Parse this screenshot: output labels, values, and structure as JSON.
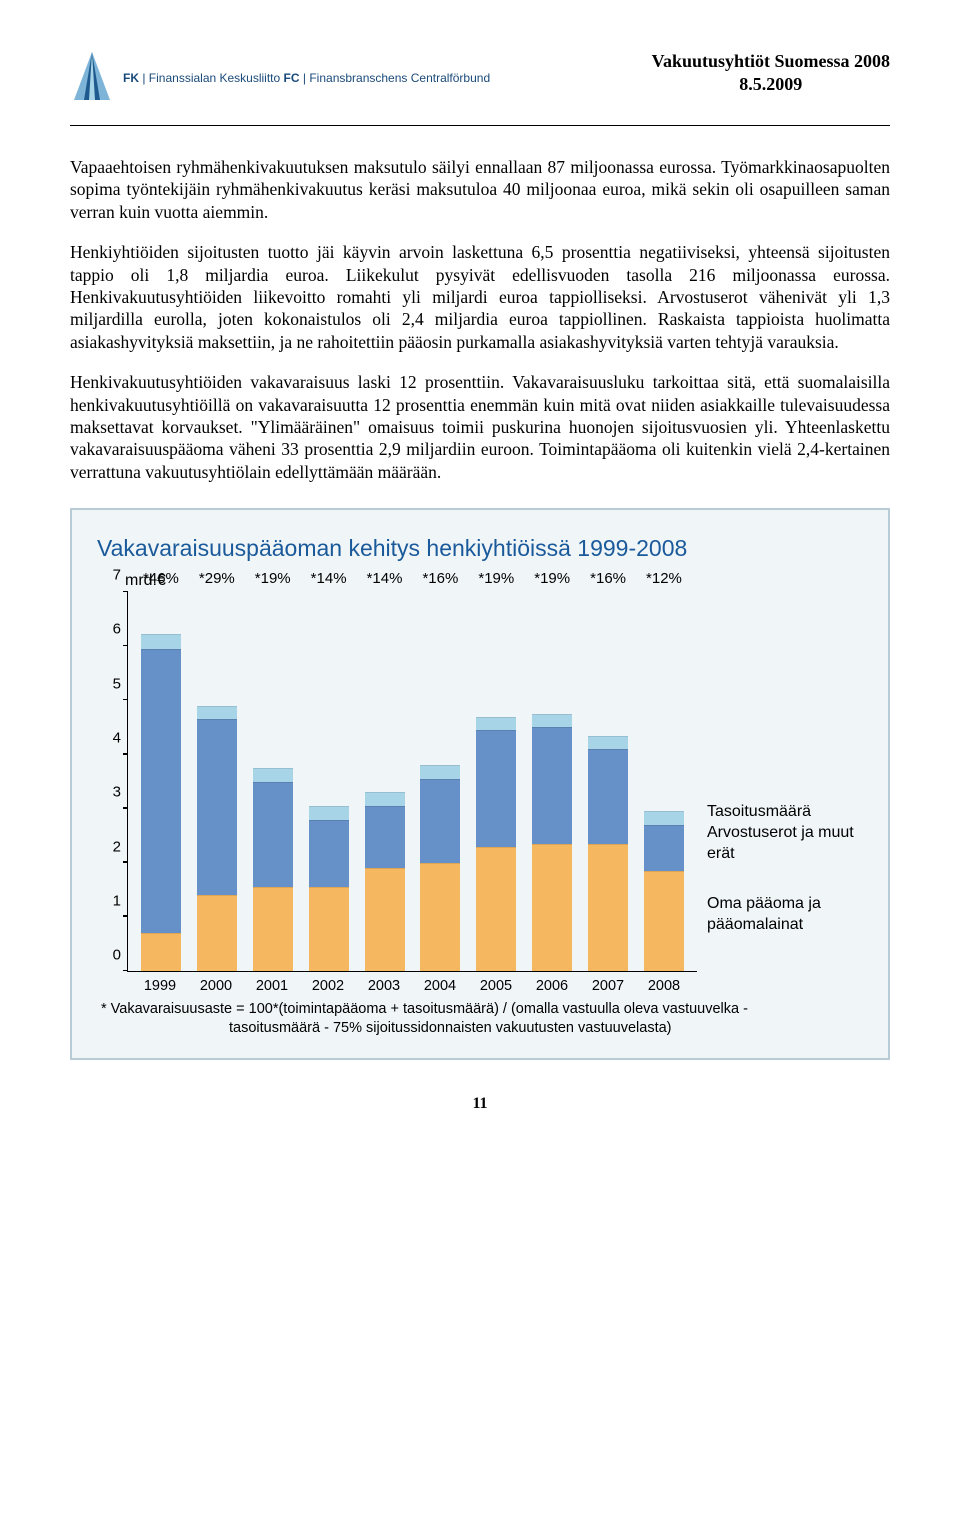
{
  "header": {
    "org_prefix1": "FK",
    "org_name1": "Finanssialan Keskusliitto",
    "org_prefix2": "FC",
    "org_name2": "Finansbranschens Centralförbund",
    "doc_title": "Vakuutusyhtiöt Suomessa 2008",
    "doc_date": "8.5.2009",
    "logo_color_dark": "#1e5a8e",
    "logo_color_light": "#7db4d8"
  },
  "paragraphs": {
    "p1": "Vapaaehtoisen ryhmähenkivakuutuksen maksutulo säilyi ennallaan 87 miljoonassa eurossa. Työmarkkinaosapuolten sopima työntekijäin ryhmähenkivakuutus keräsi maksutuloa 40 miljoonaa euroa, mikä sekin oli osapuilleen saman verran kuin vuotta aiemmin.",
    "p2": "Henkiyhtiöiden sijoitusten tuotto jäi käyvin arvoin laskettuna 6,5 prosenttia negatiiviseksi, yhteensä sijoitusten tappio oli 1,8 miljardia euroa. Liikekulut pysyivät edellisvuoden tasolla 216 miljoonassa eurossa. Henkivakuutusyhtiöiden liikevoitto romahti yli miljardi euroa tappiolliseksi. Arvostuserot vähenivät yli 1,3 miljardilla eurolla, joten kokonaistulos oli 2,4 miljardia euroa tappiollinen. Raskaista tappioista huolimatta asiakashyvityksiä maksettiin, ja ne rahoitettiin pääosin purkamalla asiakashyvityksiä varten tehtyjä varauksia.",
    "p3": "Henkivakuutusyhtiöiden vakavaraisuus laski 12 prosenttiin. Vakavaraisuusluku tarkoittaa sitä, että suomalaisilla henkivakuutusyhtiöillä on vakavaraisuutta 12 prosenttia enemmän kuin mitä ovat niiden asiakkaille tulevaisuudessa maksettavat korvaukset. \"Ylimääräinen\" omaisuus toimii puskurina huonojen sijoitusvuosien yli. Yhteenlaskettu vakavaraisuuspääoma väheni 33 prosenttia 2,9 miljardiin euroon. Toimintapääoma oli kuitenkin vielä 2,4-kertainen verrattuna vakuutusyhtiölain edellyttämään määrään."
  },
  "chart": {
    "title": "Vakavaraisuuspääoman kehitys henkiyhtiöissä 1999-2008",
    "ylabel": "mrd.€",
    "panel_bg": "#f0f5f8",
    "panel_border": "#b8ccd8",
    "title_color": "#1a5a9a",
    "y_max": 7,
    "y_ticks": [
      0,
      1,
      2,
      3,
      4,
      5,
      6,
      7
    ],
    "colors": {
      "oma_paaoma": "#f5b860",
      "arvostuserot": "#6690c8",
      "tasoitusmaara": "#a8d4e8"
    },
    "legend": {
      "tasoitus": "Tasoitusmäärä",
      "arvostus": "Arvostuserot ja muut erät",
      "oma": "Oma pääoma ja pääomalainat"
    },
    "bars": [
      {
        "year": "1999",
        "label": "*46%",
        "oma": 0.7,
        "arv": 5.25,
        "tas": 0.28
      },
      {
        "year": "2000",
        "label": "*29%",
        "oma": 1.4,
        "arv": 3.25,
        "tas": 0.25
      },
      {
        "year": "2001",
        "label": "*19%",
        "oma": 1.55,
        "arv": 1.95,
        "tas": 0.25
      },
      {
        "year": "2002",
        "label": "*14%",
        "oma": 1.55,
        "arv": 1.25,
        "tas": 0.25
      },
      {
        "year": "2003",
        "label": "*14%",
        "oma": 1.9,
        "arv": 1.15,
        "tas": 0.25
      },
      {
        "year": "2004",
        "label": "*16%",
        "oma": 2.0,
        "arv": 1.55,
        "tas": 0.25
      },
      {
        "year": "2005",
        "label": "*19%",
        "oma": 2.3,
        "arv": 2.15,
        "tas": 0.25
      },
      {
        "year": "2006",
        "label": "*19%",
        "oma": 2.35,
        "arv": 2.15,
        "tas": 0.25
      },
      {
        "year": "2007",
        "label": "*16%",
        "oma": 2.35,
        "arv": 1.75,
        "tas": 0.25
      },
      {
        "year": "2008",
        "label": "*12%",
        "oma": 1.85,
        "arv": 0.85,
        "tas": 0.25
      }
    ],
    "footnote_l1": "* Vakavaraisuusaste = 100*(toimintapääoma + tasoitusmäärä) / (omalla vastuulla oleva vastuuvelka -",
    "footnote_l2": "tasoitusmäärä - 75% sijoitussidonnaisten vakuutusten vastuuvelasta)"
  },
  "page_number": "11"
}
